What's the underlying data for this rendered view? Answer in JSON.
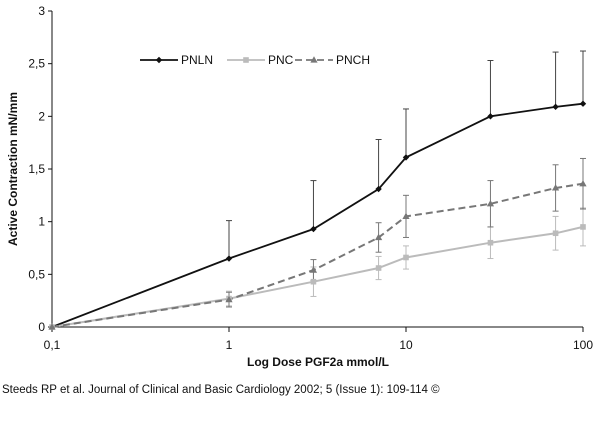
{
  "chart_data": {
    "type": "line",
    "xscale": "log",
    "xlabel": "Log Dose PGF2a mmol/L",
    "ylabel": "Active Contraction mN/mm",
    "xlim": [
      0.1,
      100
    ],
    "ylim": [
      0,
      3
    ],
    "x_ticks": [
      0.1,
      1,
      10,
      100
    ],
    "x_tick_labels": [
      "0,1",
      "1",
      "10",
      "100"
    ],
    "y_ticks": [
      0,
      0.5,
      1,
      1.5,
      2,
      2.5,
      3
    ],
    "y_tick_labels": [
      "0",
      "0,5",
      "1",
      "1,5",
      "2",
      "2,5",
      "3"
    ],
    "grid": false,
    "legend_position": "top",
    "series": [
      {
        "name": "PNLN",
        "color": "#111111",
        "dash": "solid",
        "marker": "diamond",
        "x": [
          0.1,
          1,
          3,
          7,
          10,
          30,
          70,
          100
        ],
        "y": [
          0,
          0.65,
          0.93,
          1.31,
          1.61,
          2.0,
          2.09,
          2.12
        ],
        "error": [
          0,
          0.36,
          0.46,
          0.47,
          0.46,
          0.53,
          0.52,
          0.5
        ]
      },
      {
        "name": "PNC",
        "color": "#bbbbbb",
        "dash": "solid",
        "marker": "square",
        "x": [
          0.1,
          1,
          3,
          7,
          10,
          30,
          70,
          100
        ],
        "y": [
          0,
          0.27,
          0.43,
          0.56,
          0.66,
          0.8,
          0.89,
          0.95
        ],
        "error": [
          0,
          0.07,
          0.14,
          0.11,
          0.11,
          0.15,
          0.16,
          0.18
        ]
      },
      {
        "name": "PNCH",
        "color": "#777777",
        "dash": "dashed",
        "marker": "triangle",
        "x": [
          0.1,
          1,
          3,
          7,
          10,
          30,
          70,
          100
        ],
        "y": [
          0,
          0.26,
          0.54,
          0.85,
          1.05,
          1.17,
          1.32,
          1.36
        ],
        "error": [
          0,
          0.07,
          0.1,
          0.14,
          0.2,
          0.22,
          0.22,
          0.24
        ]
      }
    ]
  },
  "caption": "Steeds RP et al. Journal of Clinical and Basic Cardiology 2002; 5 (Issue 1): 109-114 ©"
}
